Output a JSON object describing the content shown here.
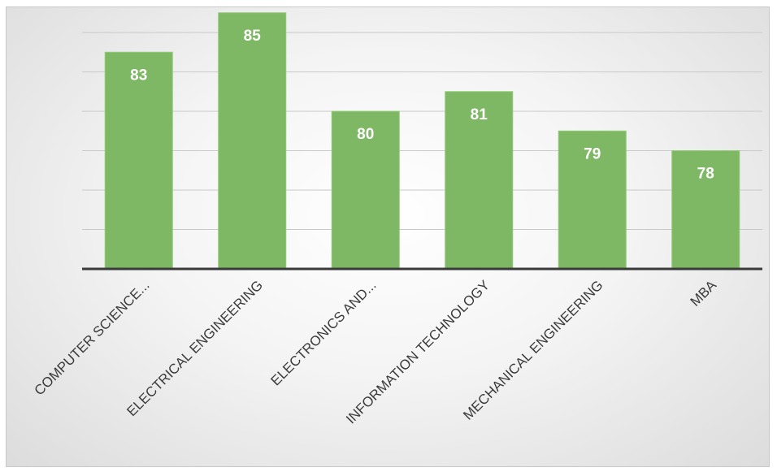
{
  "chart_data": {
    "type": "bar",
    "categories": [
      "COMPUTER SCIENCE...",
      "ELECTRICAL ENGINEERING",
      "ELECTRONICS AND...",
      "INFORMATION TECHNOLOGY",
      "MECHANICAL ENGINEERING",
      "MBA"
    ],
    "values": [
      83,
      85,
      80,
      81,
      79,
      78
    ],
    "data_labels": [
      "83",
      "85",
      "80",
      "81",
      "79",
      "78"
    ],
    "title": "",
    "xlabel": "",
    "ylabel": "",
    "ylim": [
      72,
      87
    ],
    "gridlines": [
      74,
      76,
      78,
      80,
      82,
      84,
      86
    ],
    "grid": true,
    "legend": "none",
    "colors": {
      "bar_fill": "#7eb864",
      "axis": "#3a3a3a",
      "grid": "#c9c9c9",
      "data_label": "#ffffff"
    }
  }
}
